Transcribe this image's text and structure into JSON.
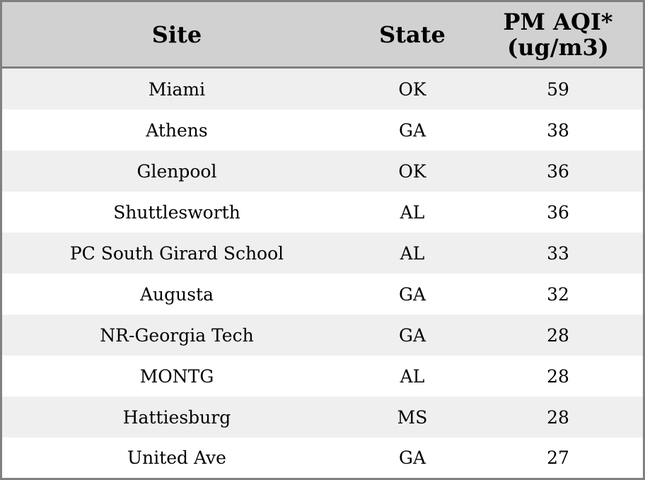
{
  "table": {
    "headers": {
      "site": "Site",
      "state": "State",
      "pm_line1": "PM AQI*",
      "pm_line2": "(ug/m3)"
    },
    "rows": [
      {
        "site": "Miami",
        "state": "OK",
        "pm": "59"
      },
      {
        "site": "Athens",
        "state": "GA",
        "pm": "38"
      },
      {
        "site": "Glenpool",
        "state": "OK",
        "pm": "36"
      },
      {
        "site": "Shuttlesworth",
        "state": "AL",
        "pm": "36"
      },
      {
        "site": "PC South Girard School",
        "state": "AL",
        "pm": "33"
      },
      {
        "site": "Augusta",
        "state": "GA",
        "pm": "32"
      },
      {
        "site": "NR-Georgia Tech",
        "state": "GA",
        "pm": "28"
      },
      {
        "site": "MONTG",
        "state": "AL",
        "pm": "28"
      },
      {
        "site": "Hattiesburg",
        "state": "MS",
        "pm": "28"
      },
      {
        "site": "United Ave",
        "state": "GA",
        "pm": "27"
      }
    ]
  },
  "colors": {
    "header_bg": "#d1d1d1",
    "row_alt_bg": "#efefef",
    "row_bg": "#ffffff",
    "border": "#808080"
  }
}
